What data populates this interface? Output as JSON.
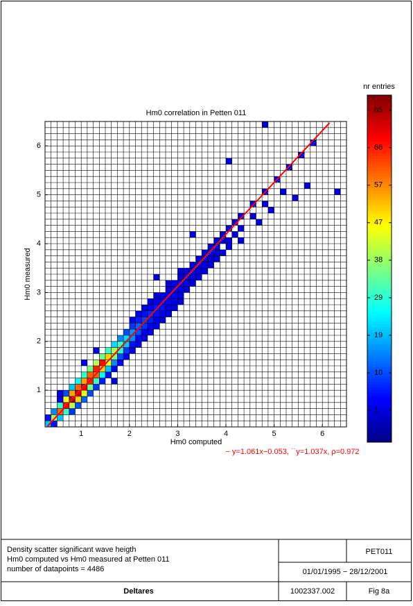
{
  "chart_data": {
    "type": "density-scatter",
    "title": "Hm0 correlation in Petten 011",
    "xlabel": "Hm0 computed",
    "ylabel": "Hm0 measured",
    "xlim": [
      0.25,
      6.5
    ],
    "ylim": [
      0.25,
      6.5
    ],
    "xticks": [
      1,
      2,
      3,
      4,
      5,
      6
    ],
    "yticks": [
      1,
      2,
      3,
      4,
      5,
      6
    ],
    "bin_size": 0.125,
    "cells": [
      [
        0.25,
        0.25,
        20
      ],
      [
        0.25,
        0.375,
        5
      ],
      [
        0.375,
        0.25,
        5
      ],
      [
        0.375,
        0.375,
        40
      ],
      [
        0.375,
        0.5,
        15
      ],
      [
        0.5,
        0.375,
        20
      ],
      [
        0.5,
        0.5,
        60
      ],
      [
        0.5,
        0.625,
        30
      ],
      [
        0.5,
        0.75,
        3
      ],
      [
        0.625,
        0.5,
        30
      ],
      [
        0.625,
        0.625,
        70
      ],
      [
        0.625,
        0.75,
        45
      ],
      [
        0.625,
        0.875,
        10
      ],
      [
        0.75,
        0.5,
        8
      ],
      [
        0.75,
        0.625,
        40
      ],
      [
        0.75,
        0.75,
        85
      ],
      [
        0.75,
        0.875,
        55
      ],
      [
        0.75,
        1,
        20
      ],
      [
        0.875,
        0.625,
        10
      ],
      [
        0.875,
        0.75,
        50
      ],
      [
        0.875,
        0.875,
        80
      ],
      [
        0.875,
        1,
        60
      ],
      [
        0.875,
        1.125,
        25
      ],
      [
        1,
        0.75,
        12
      ],
      [
        1,
        0.875,
        45
      ],
      [
        1,
        1,
        75
      ],
      [
        1,
        1.125,
        55
      ],
      [
        1,
        1.25,
        30
      ],
      [
        1.125,
        0.875,
        10
      ],
      [
        1.125,
        1,
        35
      ],
      [
        1.125,
        1.125,
        66
      ],
      [
        1.125,
        1.25,
        60
      ],
      [
        1.125,
        1.375,
        35
      ],
      [
        1.25,
        1,
        8
      ],
      [
        1.25,
        1.125,
        30
      ],
      [
        1.25,
        1.25,
        60
      ],
      [
        1.25,
        1.375,
        66
      ],
      [
        1.25,
        1.5,
        40
      ],
      [
        1.375,
        1.125,
        6
      ],
      [
        1.375,
        1.25,
        25
      ],
      [
        1.375,
        1.375,
        50
      ],
      [
        1.375,
        1.5,
        70
      ],
      [
        1.375,
        1.625,
        35
      ],
      [
        1.5,
        1.25,
        5
      ],
      [
        1.5,
        1.375,
        20
      ],
      [
        1.5,
        1.5,
        45
      ],
      [
        1.5,
        1.625,
        50
      ],
      [
        1.5,
        1.75,
        30
      ],
      [
        1.625,
        1.375,
        4
      ],
      [
        1.625,
        1.5,
        15
      ],
      [
        1.625,
        1.625,
        35
      ],
      [
        1.625,
        1.75,
        40
      ],
      [
        1.625,
        1.875,
        22
      ],
      [
        1.75,
        1.5,
        3
      ],
      [
        1.75,
        1.625,
        10
      ],
      [
        1.75,
        1.75,
        28
      ],
      [
        1.75,
        1.875,
        30
      ],
      [
        1.75,
        2,
        15
      ],
      [
        1.875,
        1.625,
        3
      ],
      [
        1.875,
        1.75,
        8
      ],
      [
        1.875,
        1.875,
        20
      ],
      [
        1.875,
        2,
        22
      ],
      [
        1.875,
        2.125,
        10
      ],
      [
        2,
        1.75,
        2
      ],
      [
        2,
        1.875,
        5
      ],
      [
        2,
        2,
        15
      ],
      [
        2,
        2.125,
        16
      ],
      [
        2,
        2.25,
        8
      ],
      [
        2,
        2.375,
        3
      ],
      [
        2.125,
        1.875,
        2
      ],
      [
        2.125,
        2,
        4
      ],
      [
        2.125,
        2.125,
        10
      ],
      [
        2.125,
        2.25,
        12
      ],
      [
        2.125,
        2.375,
        6
      ],
      [
        2.125,
        2.5,
        2
      ],
      [
        2.25,
        2,
        2
      ],
      [
        2.25,
        2.125,
        3
      ],
      [
        2.25,
        2.25,
        8
      ],
      [
        2.25,
        2.375,
        9
      ],
      [
        2.25,
        2.5,
        5
      ],
      [
        2.25,
        2.625,
        2
      ],
      [
        2.375,
        2.125,
        2
      ],
      [
        2.375,
        2.25,
        3
      ],
      [
        2.375,
        2.375,
        6
      ],
      [
        2.375,
        2.5,
        7
      ],
      [
        2.375,
        2.625,
        4
      ],
      [
        2.375,
        2.75,
        1
      ],
      [
        2.5,
        2.25,
        2
      ],
      [
        2.5,
        2.375,
        2
      ],
      [
        2.5,
        2.5,
        5
      ],
      [
        2.5,
        2.625,
        6
      ],
      [
        2.5,
        2.75,
        3
      ],
      [
        2.5,
        2.875,
        1
      ],
      [
        2.625,
        2.375,
        1
      ],
      [
        2.625,
        2.5,
        3
      ],
      [
        2.625,
        2.625,
        5
      ],
      [
        2.625,
        2.75,
        4
      ],
      [
        2.625,
        2.875,
        2
      ],
      [
        2.75,
        2.5,
        2
      ],
      [
        2.75,
        2.625,
        2
      ],
      [
        2.75,
        2.75,
        4
      ],
      [
        2.75,
        2.875,
        4
      ],
      [
        2.75,
        3,
        2
      ],
      [
        2.75,
        3.125,
        1
      ],
      [
        2.875,
        2.625,
        1
      ],
      [
        2.875,
        2.75,
        2
      ],
      [
        2.875,
        2.875,
        3
      ],
      [
        2.875,
        3,
        3
      ],
      [
        2.875,
        3.125,
        2
      ],
      [
        3,
        2.75,
        1
      ],
      [
        3,
        2.875,
        2
      ],
      [
        3,
        3,
        3
      ],
      [
        3,
        3.125,
        3
      ],
      [
        3,
        3.25,
        1
      ],
      [
        3,
        3.375,
        1
      ],
      [
        3.125,
        3,
        1
      ],
      [
        3.125,
        3.125,
        2
      ],
      [
        3.125,
        3.25,
        2
      ],
      [
        3.125,
        3.375,
        1
      ],
      [
        3.25,
        3.125,
        1
      ],
      [
        3.25,
        3.25,
        2
      ],
      [
        3.25,
        3.375,
        2
      ],
      [
        3.25,
        3.5,
        1
      ],
      [
        3.375,
        3.25,
        1
      ],
      [
        3.375,
        3.375,
        2
      ],
      [
        3.375,
        3.5,
        2
      ],
      [
        3.375,
        3.625,
        1
      ],
      [
        3.5,
        3.375,
        1
      ],
      [
        3.5,
        3.5,
        2
      ],
      [
        3.5,
        3.625,
        1
      ],
      [
        3.5,
        3.75,
        1
      ],
      [
        3.625,
        3.5,
        1
      ],
      [
        3.625,
        3.625,
        1
      ],
      [
        3.625,
        3.75,
        2
      ],
      [
        3.625,
        3.875,
        1
      ],
      [
        3.75,
        3.625,
        1
      ],
      [
        3.75,
        3.75,
        1
      ],
      [
        3.75,
        3.875,
        1
      ],
      [
        3.75,
        4,
        1
      ],
      [
        3.875,
        3.75,
        1
      ],
      [
        3.875,
        4,
        1
      ],
      [
        3.875,
        4.125,
        1
      ],
      [
        4,
        3.875,
        1
      ],
      [
        4,
        4,
        1
      ],
      [
        4,
        4.25,
        1
      ],
      [
        4.125,
        4.125,
        1
      ],
      [
        4.125,
        4.375,
        1
      ],
      [
        4.25,
        4,
        1
      ],
      [
        4.25,
        4.25,
        1
      ],
      [
        4.25,
        4.5,
        1
      ],
      [
        4.5,
        4.5,
        1
      ],
      [
        4.5,
        4.75,
        1
      ],
      [
        4.625,
        4.375,
        1
      ],
      [
        4.75,
        4.75,
        1
      ],
      [
        4.75,
        5,
        1
      ],
      [
        4.875,
        4.625,
        1
      ],
      [
        5,
        5.25,
        1
      ],
      [
        5.125,
        5,
        1
      ],
      [
        5.25,
        5.5,
        1
      ],
      [
        5.375,
        4.875,
        1
      ],
      [
        5.5,
        5.75,
        1
      ],
      [
        5.625,
        5.125,
        1
      ],
      [
        5.75,
        6,
        1
      ],
      [
        4.75,
        6.375,
        1
      ],
      [
        6.25,
        5,
        1
      ],
      [
        4,
        5.625,
        1
      ],
      [
        3.25,
        4.125,
        1
      ],
      [
        2.5,
        3.25,
        1
      ],
      [
        1.625,
        1.125,
        1
      ],
      [
        1,
        1.5,
        2
      ],
      [
        1.25,
        1.75,
        2
      ],
      [
        0.5,
        0.875,
        1
      ]
    ],
    "fit_line": {
      "color": "#ff0000",
      "x": [
        0.3,
        6.15
      ],
      "y": [
        0.265,
        6.472
      ]
    },
    "reference_line": {
      "color": "#999999",
      "x": [
        0.25,
        6.25
      ],
      "y": [
        0.259,
        6.481
      ]
    },
    "fit_label": "− y=1.061x−0.053, ˙˙y=1.037x, ρ=0.972",
    "colorbar": {
      "label": "nr entries",
      "ticks": [
        1,
        10,
        19,
        29,
        38,
        47,
        57,
        66,
        85
      ]
    }
  },
  "footer": {
    "description": [
      "Density scatter significant wave heigth",
      "Hm0 computed vs Hm0 measured at Petten 011",
      "number of datapoints = 4486"
    ],
    "code": "PET011",
    "period": "01/01/1995 − 28/12/2001",
    "company": "Deltares",
    "project": "1002337.002",
    "figure": "Fig 8a"
  }
}
